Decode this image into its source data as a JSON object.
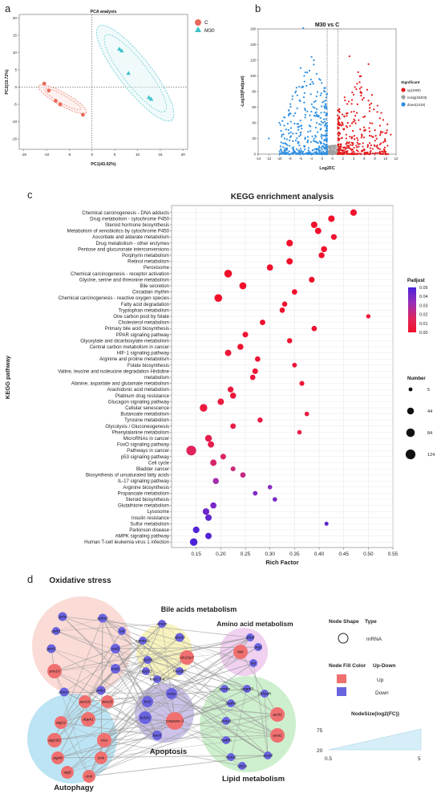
{
  "panels": {
    "a": "a",
    "b": "b",
    "c": "c",
    "d": "d"
  },
  "chart_data": [
    {
      "type": "scatter",
      "title": "PCA analysis",
      "xlabel": "PC1(43.02%)",
      "ylabel": "PC2(19.72%)",
      "xlim": [
        -16,
        21
      ],
      "ylim": [
        -18,
        21
      ],
      "xticks": [
        "-15",
        "-10",
        "-5",
        "0",
        "5",
        "10",
        "15",
        "20"
      ],
      "yticks": [
        "-15",
        "-10",
        "-5",
        "0",
        "5",
        "10",
        "15",
        "20"
      ],
      "legend": [
        "C",
        "M30"
      ],
      "series": [
        {
          "name": "C",
          "color": "#e8685a",
          "shape": "circle",
          "x": [
            -10.5,
            -9.5,
            -8,
            -7,
            -2
          ],
          "y": [
            1,
            -1,
            -4,
            -5,
            -8
          ]
        },
        {
          "name": "M30",
          "color": "#3ec2c9",
          "shape": "triangle",
          "x": [
            6,
            6.5,
            8,
            12.5,
            13
          ],
          "y": [
            11,
            10.5,
            4,
            -3,
            -3.5
          ]
        }
      ]
    },
    {
      "type": "scatter",
      "title": "M30 vs C",
      "xlabel": "Log2FC",
      "ylabel": "-Log10(Padjust)",
      "xlim": [
        -14,
        12
      ],
      "ylim": [
        0,
        160
      ],
      "xticks": [
        "-14",
        "-12",
        "-10",
        "-8",
        "-6",
        "-4",
        "-2",
        "0",
        "2",
        "4",
        "6",
        "8",
        "10",
        "12"
      ],
      "yticks": [
        "0",
        "20",
        "40",
        "60",
        "80",
        "100",
        "120",
        "140",
        "160"
      ],
      "legend_title": "Significant",
      "legend": [
        "up(1900)",
        "nosig(36303)",
        "down(2419)"
      ],
      "colors": {
        "up": "#e41a1c",
        "nosig": "#a0a0a0",
        "down": "#2f8fe0"
      }
    },
    {
      "type": "scatter",
      "title": "KEGG enrichment analysis",
      "xlabel": "Rich Factor",
      "ylabel": "KEGG pathway",
      "xlim": [
        0.1,
        0.55
      ],
      "xticks": [
        "0.15",
        "0.20",
        "0.25",
        "0.30",
        "0.35",
        "0.40",
        "0.45",
        "0.50",
        "0.55"
      ],
      "color_legend_title": "Padjust",
      "color_ticks": [
        "0.05",
        "0.04",
        "0.03",
        "0.02",
        "0.01",
        "0.00"
      ],
      "size_legend_title": "Number",
      "size_ticks": [
        "5",
        "44",
        "84",
        "124"
      ],
      "categories": [
        "Chemical carcinogenesis - DNA adducts",
        "Drug metabolism - cytochrome P450",
        "Steroid hormone biosynthesis",
        "Metabolism of xenobiotics by cytochrome P450",
        "Ascorbate and aldarate metabolism",
        "Drug metabolism - other enzymes",
        "Pentose and glucuronate interconversions",
        "Porphyrin metabolism",
        "Retinol metabolism",
        "Peroxisome",
        "Chemical carcinogenesis - receptor activation",
        "Glycine, serine and threonine metabolism",
        "Bile secretion",
        "Circadian rhythm",
        "Chemical carcinogenesis - reactive oxygen species",
        "Fatty acid degradation",
        "Tryptophan metabolism",
        "One carbon pool by folate",
        "Cholesterol metabolism",
        "Primary bile acid biosynthesis",
        "PPAR signaling pathway",
        "Glyoxylate and dicarboxylate metabolism",
        "Central carbon metabolism in cancer",
        "HIF-1 signaling pathway",
        "Arginine and proline metabolism",
        "Folate biosynthesis",
        "Valine, leucine and isoleucine degradation Histidine",
        "metabolism",
        "Alanine, aspartate and glutamate metabolism",
        "Arachidonic acid metabolism",
        "Platinum drug resistance",
        "Glucagon signaling pathway",
        "Cellular senescence",
        "Butanoate metabolism",
        "Tyrosine metabolism",
        "Glycolysis / Gluconeogenesis",
        "Phenylalanine metabolism",
        "MicroRNAs in cancer",
        "FoxO signaling pathway",
        "Pathways in cancer",
        "p53 signaling pathway",
        "Cell cycle",
        "Bladder cancer",
        "Biosynthesis of unsaturated fatty acids",
        "IL-17 signaling pathway",
        "Arginine biosynthesis",
        "Propanoate metabolism",
        "Steroid biosynthesis",
        "Glutathione metabolism",
        "Lysosome",
        "Insulin resistance",
        "Sulfur metabolism",
        "Parkinson disease",
        "AMPK signaling pathway",
        "Human T-cell leukemia virus 1 infection"
      ],
      "rich_factor": [
        0.47,
        0.425,
        0.39,
        0.398,
        0.43,
        0.34,
        0.41,
        0.405,
        0.34,
        0.3,
        0.215,
        0.385,
        0.245,
        0.35,
        0.195,
        0.33,
        0.325,
        0.5,
        0.285,
        0.39,
        0.25,
        0.34,
        0.24,
        0.215,
        0.275,
        0.35,
        0.27,
        0.265,
        0.365,
        0.22,
        0.225,
        0.2,
        0.165,
        0.375,
        0.28,
        0.225,
        0.36,
        0.175,
        0.18,
        0.14,
        0.205,
        0.185,
        0.225,
        0.245,
        0.19,
        0.3,
        0.27,
        0.31,
        0.185,
        0.17,
        0.175,
        0.415,
        0.15,
        0.175,
        0.145
      ],
      "number": [
        38,
        38,
        38,
        36,
        26,
        40,
        30,
        28,
        36,
        34,
        64,
        26,
        48,
        20,
        64,
        18,
        20,
        8,
        22,
        20,
        24,
        18,
        30,
        36,
        20,
        12,
        24,
        20,
        14,
        28,
        30,
        36,
        60,
        10,
        18,
        22,
        10,
        44,
        36,
        124,
        24,
        36,
        14,
        20,
        30,
        10,
        12,
        10,
        32,
        40,
        38,
        6,
        40,
        36,
        60
      ],
      "padjust": [
        0.0,
        0.0,
        0.0,
        0.0,
        0.0,
        0.0,
        0.0,
        0.0,
        0.0,
        0.0,
        0.0,
        0.0,
        0.0,
        0.0,
        0.0,
        0.001,
        0.001,
        0.002,
        0.001,
        0.001,
        0.002,
        0.002,
        0.002,
        0.003,
        0.003,
        0.003,
        0.004,
        0.004,
        0.004,
        0.005,
        0.005,
        0.006,
        0.006,
        0.006,
        0.008,
        0.008,
        0.01,
        0.01,
        0.012,
        0.015,
        0.016,
        0.018,
        0.02,
        0.022,
        0.03,
        0.036,
        0.038,
        0.04,
        0.04,
        0.042,
        0.045,
        0.046,
        0.048,
        0.049,
        0.05
      ]
    }
  ],
  "network": {
    "clusters": {
      "oxidative": "Oxidative stress",
      "bile": "Bile acids metabolism",
      "amino": "Amino acid metabolism",
      "autophagy": "Autophagy",
      "apoptosis": "Apoptosis",
      "lipid": "Lipid metabolism"
    },
    "nodes": [
      {
        "label": "gsta",
        "up": false
      },
      {
        "label": "ephx2",
        "up": false
      },
      {
        "label": "cat",
        "up": false
      },
      {
        "label": "gstk1",
        "up": false
      },
      {
        "label": "gstz1",
        "up": false
      },
      {
        "label": "sod2",
        "up": false
      },
      {
        "label": "pex10",
        "up": true
      },
      {
        "label": "sod1",
        "up": false
      },
      {
        "label": "prdx1",
        "up": false
      },
      {
        "label": "pex14",
        "up": false
      },
      {
        "label": "pex16",
        "up": true
      },
      {
        "label": "pex26",
        "up": true
      },
      {
        "label": "amacr",
        "up": false
      },
      {
        "label": "cyp4a11",
        "up": false
      },
      {
        "label": "abcd3",
        "up": false
      },
      {
        "label": "ch25h",
        "up": false
      },
      {
        "label": "slc22a7",
        "up": true
      },
      {
        "label": "cyp2c1",
        "up": false
      },
      {
        "label": "hsd3b7",
        "up": false
      },
      {
        "label": "hsd17b4",
        "up": false
      },
      {
        "label": "afodf",
        "up": false
      },
      {
        "label": "arg1",
        "up": false
      },
      {
        "label": "hdc",
        "up": true
      },
      {
        "label": "iao",
        "up": false
      },
      {
        "label": "acadm",
        "up": false
      },
      {
        "label": "angptl3",
        "up": false
      },
      {
        "label": "ehhadh",
        "up": false
      },
      {
        "label": "hadha",
        "up": false
      },
      {
        "label": "acsl1",
        "up": true
      },
      {
        "label": "acot1",
        "up": true
      },
      {
        "label": "acaa1",
        "up": false
      },
      {
        "label": "hadhb",
        "up": false
      },
      {
        "label": "acadl",
        "up": false
      },
      {
        "label": "acaa2",
        "up": false
      },
      {
        "label": "cpt1a",
        "up": false
      },
      {
        "label": "atg12",
        "up": true
      },
      {
        "label": "dapk1",
        "up": true
      },
      {
        "label": "atg16l2",
        "up": true
      },
      {
        "label": "ctss",
        "up": true
      },
      {
        "label": "atg4b",
        "up": true
      },
      {
        "label": "ctsk",
        "up": true
      },
      {
        "label": "atg5",
        "up": true
      },
      {
        "label": "ctsh",
        "up": true
      },
      {
        "label": "bcl2",
        "up": false
      },
      {
        "label": "casp",
        "up": false
      },
      {
        "label": "bcl2l1",
        "up": false
      },
      {
        "label": "caspase-3",
        "up": true
      },
      {
        "label": "bax5",
        "up": false
      }
    ],
    "legend": {
      "shape_header": "Node Shape",
      "type_header": "Type",
      "type_value": "mRNA",
      "fill_header": "Node Fill Color",
      "updown_header": "Up-Down",
      "up_label": "Up",
      "down_label": "Down",
      "size_header": "NodeSize(log2(FC))",
      "size_y_top": "75",
      "size_y_bottom": "20",
      "size_x_left": "0.5",
      "size_x_right": "5",
      "up_color": "#f07070",
      "down_color": "#6a63e0"
    }
  }
}
